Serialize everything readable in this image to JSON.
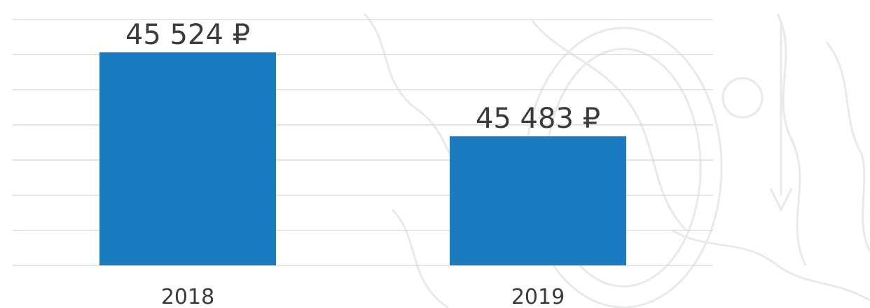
{
  "chart_data": {
    "type": "bar",
    "categories": [
      "2018",
      "2019"
    ],
    "values": [
      45524,
      45483
    ],
    "value_labels": [
      "45 524 ₽",
      "45 483 ₽"
    ],
    "currency": "₽",
    "ylim": [
      45420,
      45540
    ],
    "grid": true,
    "legend": "none",
    "colors": {
      "bar": "#1b7bc0",
      "grid": "#d6d6d6",
      "text": "#3b3b3b",
      "watermark": "#e9e9ec"
    }
  }
}
